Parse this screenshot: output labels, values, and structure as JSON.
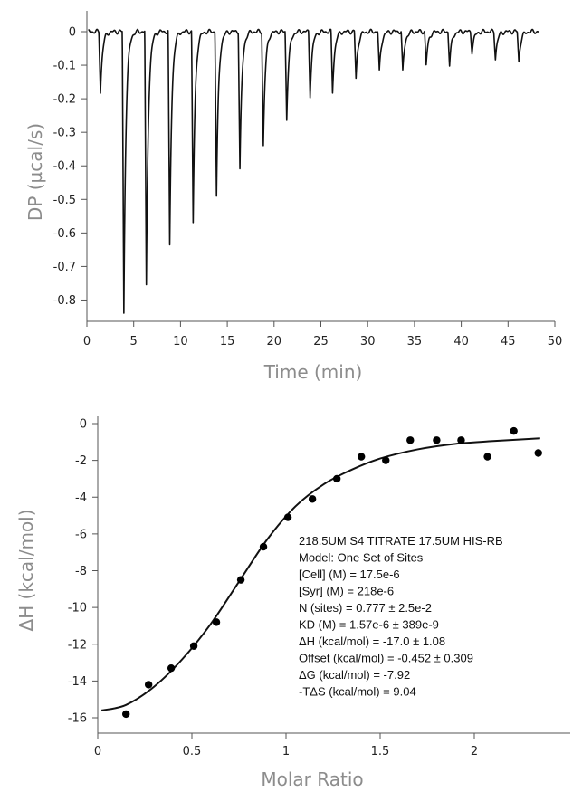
{
  "chart_data": [
    {
      "type": "line",
      "title": "",
      "xlabel": "Time (min)",
      "ylabel": "DP (µcal/s)",
      "xlim": [
        0,
        50
      ],
      "ylim": [
        -0.85,
        0
      ],
      "xticks": [
        "0",
        "5",
        "10",
        "15",
        "20",
        "25",
        "30",
        "35",
        "40",
        "45",
        "50"
      ],
      "yticks": [
        "0",
        "-0.1",
        "-0.2",
        "-0.3",
        "-0.4",
        "-0.5",
        "-0.6",
        "-0.7",
        "-0.8"
      ],
      "grid": false,
      "injections": {
        "time_min": [
          1.3,
          3.8,
          6.2,
          8.7,
          11.2,
          13.7,
          16.2,
          18.7,
          21.2,
          23.7,
          26.1,
          28.6,
          31.1,
          33.6,
          36.1,
          38.6,
          41.0,
          43.5,
          46.0
        ],
        "peak_dp": [
          -0.18,
          -0.84,
          -0.76,
          -0.64,
          -0.57,
          -0.49,
          -0.41,
          -0.34,
          -0.26,
          -0.19,
          -0.18,
          -0.14,
          -0.12,
          -0.12,
          -0.1,
          -0.1,
          -0.06,
          -0.08,
          -0.09
        ]
      },
      "baseline_dp": 0,
      "series": [
        {
          "values": "injection peaks listed above"
        }
      ]
    },
    {
      "type": "scatter",
      "title": "",
      "xlabel": "Molar Ratio",
      "ylabel": "ΔH (kcal/mol)",
      "xlim": [
        0,
        2.5
      ],
      "ylim": [
        -16.5,
        0
      ],
      "xticks": [
        "0",
        "0.5",
        "1",
        "1.5",
        "2"
      ],
      "yticks": [
        "0",
        "-2",
        "-4",
        "-6",
        "-8",
        "-10",
        "-12",
        "-14",
        "-16"
      ],
      "grid": false,
      "points": {
        "x": [
          0.15,
          0.27,
          0.39,
          0.51,
          0.63,
          0.76,
          0.88,
          1.01,
          1.14,
          1.27,
          1.4,
          1.53,
          1.66,
          1.8,
          1.93,
          2.07,
          2.21,
          2.34
        ],
        "y": [
          -15.8,
          -14.2,
          -13.3,
          -12.1,
          -10.8,
          -8.5,
          -6.7,
          -5.1,
          -4.1,
          -3.0,
          -1.8,
          -2.0,
          -0.9,
          -0.9,
          -0.9,
          -1.8,
          -0.4,
          -1.6
        ]
      },
      "fit": {
        "x": [
          0.02,
          0.15,
          0.3,
          0.45,
          0.6,
          0.75,
          0.9,
          1.05,
          1.2,
          1.35,
          1.5,
          1.7,
          1.9,
          2.1,
          2.35
        ],
        "y": [
          -15.6,
          -15.3,
          -14.3,
          -12.8,
          -10.9,
          -8.6,
          -6.3,
          -4.5,
          -3.3,
          -2.5,
          -1.9,
          -1.4,
          -1.1,
          -0.95,
          -0.8
        ]
      },
      "annotation": [
        "218.5UM S4 TITRATE 17.5UM HIS-RB",
        "Model: One Set of Sites",
        "[Cell] (M) = 17.5e-6",
        "[Syr] (M) = 218e-6",
        "N (sites) = 0.777 ± 2.5e-2",
        "KD (M) = 1.57e-6 ± 389e-9",
        "ΔH (kcal/mol) = -17.0 ± 1.08",
        "Offset (kcal/mol) = -0.452 ± 0.309",
        "ΔG (kcal/mol) = -7.92",
        "-TΔS (kcal/mol) = 9.04"
      ]
    }
  ]
}
